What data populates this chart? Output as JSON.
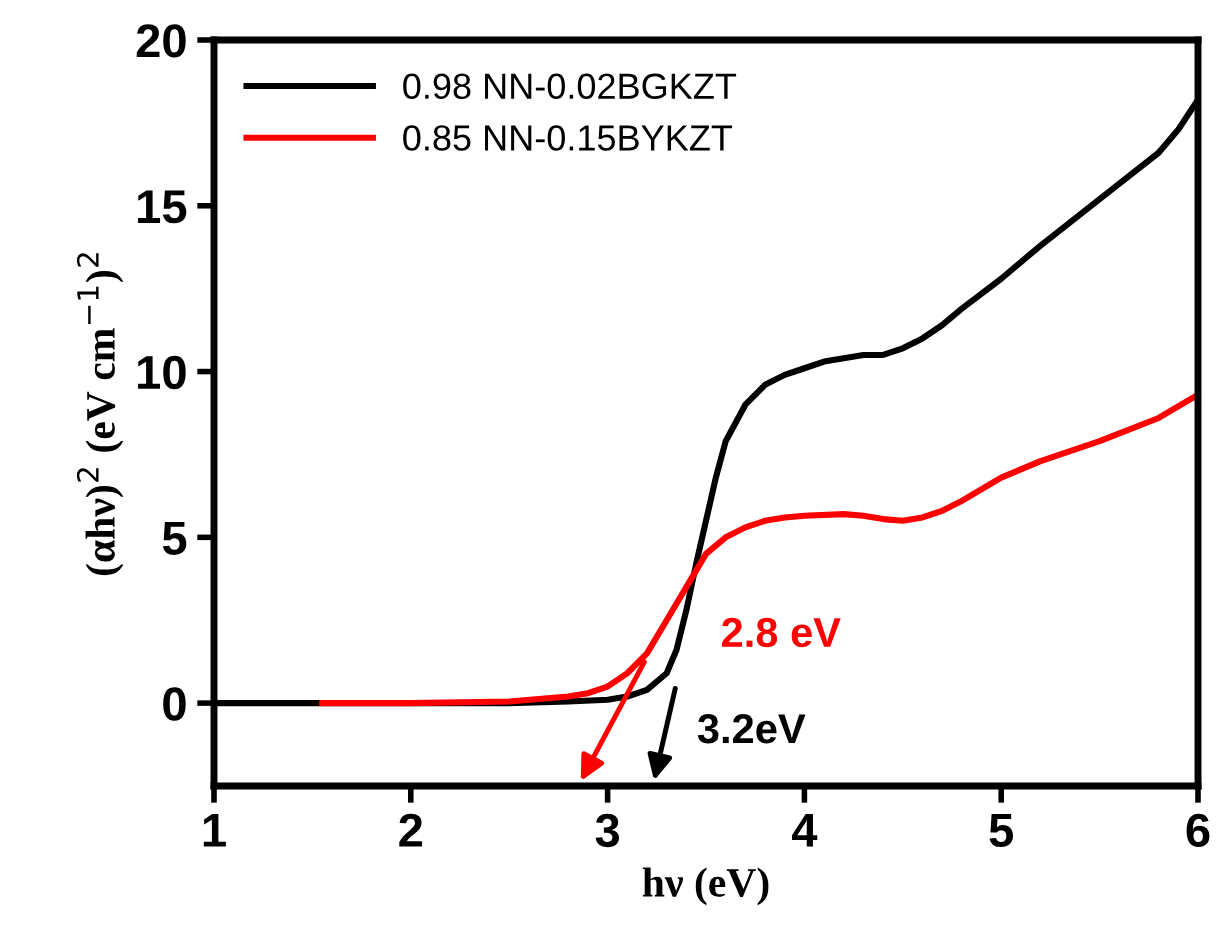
{
  "chart_data": {
    "type": "line",
    "xlabel": "hν (eV)",
    "ylabel": "(αhν)$^{2}$ (eV cm$^{−1}$)$^{2}$",
    "xlim": [
      1,
      6
    ],
    "ylim": [
      -2.5,
      20
    ],
    "xticks": [
      1,
      2,
      3,
      4,
      5,
      6
    ],
    "yticks": [
      0,
      5,
      10,
      15,
      20
    ],
    "legend": "top left",
    "grid": false,
    "line_style": "solid",
    "marker": "none",
    "series": [
      {
        "name": "0.98 NN-0.02BGKZT",
        "color": "#000000",
        "x": [
          1,
          1.5,
          2,
          2.5,
          2.8,
          3.0,
          3.1,
          3.2,
          3.3,
          3.35,
          3.4,
          3.45,
          3.5,
          3.55,
          3.6,
          3.7,
          3.8,
          3.9,
          4.0,
          4.1,
          4.2,
          4.3,
          4.4,
          4.5,
          4.6,
          4.7,
          4.8,
          5.0,
          5.2,
          5.5,
          5.8,
          5.9,
          6.0
        ],
        "values": [
          0,
          0,
          0,
          0,
          0.05,
          0.1,
          0.2,
          0.4,
          0.9,
          1.6,
          2.8,
          4.2,
          5.5,
          6.8,
          7.9,
          9.0,
          9.6,
          9.9,
          10.1,
          10.3,
          10.4,
          10.5,
          10.5,
          10.7,
          11.0,
          11.4,
          11.9,
          12.8,
          13.8,
          15.2,
          16.6,
          17.3,
          18.2
        ]
      },
      {
        "name": "0.85 NN-0.15BYKZT",
        "color": "#ff0000",
        "x": [
          1.55,
          2,
          2.5,
          2.8,
          2.9,
          3.0,
          3.1,
          3.2,
          3.3,
          3.4,
          3.5,
          3.6,
          3.7,
          3.8,
          3.9,
          4.0,
          4.2,
          4.3,
          4.4,
          4.5,
          4.6,
          4.7,
          4.8,
          5.0,
          5.2,
          5.5,
          5.8,
          6.0
        ],
        "values": [
          0,
          0,
          0.05,
          0.2,
          0.3,
          0.5,
          0.9,
          1.5,
          2.5,
          3.5,
          4.5,
          5.0,
          5.3,
          5.5,
          5.6,
          5.65,
          5.7,
          5.65,
          5.55,
          5.5,
          5.6,
          5.8,
          6.1,
          6.8,
          7.3,
          7.9,
          8.6,
          9.3
        ]
      }
    ],
    "annotations": [
      "3.2eV",
      "2.8 eV"
    ]
  }
}
